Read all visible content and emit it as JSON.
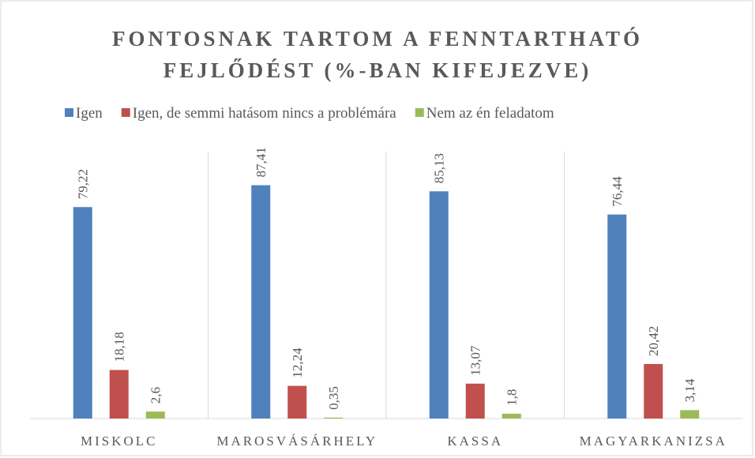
{
  "chart_data": {
    "type": "bar",
    "title": [
      "FONTOSNAK TARTOM A FENNTARTHATÓ",
      "FEJLŐDÉST (%-BAN KIFEJEZVE)"
    ],
    "categories": [
      "MISKOLC",
      "MAROSVÁSÁRHELY",
      "KASSA",
      "MAGYARKANIZSA"
    ],
    "series": [
      {
        "name": "Igen",
        "color": "#4f81bd",
        "values": [
          79.22,
          87.41,
          85.13,
          76.44
        ],
        "value_labels": [
          "79,22",
          "87,41",
          "85,13",
          "76,44"
        ]
      },
      {
        "name": "Igen, de semmi hatásom nincs a problémára",
        "color": "#c0504d",
        "values": [
          18.18,
          12.24,
          13.07,
          20.42
        ],
        "value_labels": [
          "18,18",
          "12,24",
          "13,07",
          "20,42"
        ]
      },
      {
        "name": "Nem az én feladatom",
        "color": "#9bbb59",
        "values": [
          2.6,
          0.35,
          1.8,
          3.14
        ],
        "value_labels": [
          "2,6",
          "0,35",
          "1,8",
          "3,14"
        ]
      }
    ],
    "ylim": [
      0,
      100
    ],
    "legend": "top"
  }
}
